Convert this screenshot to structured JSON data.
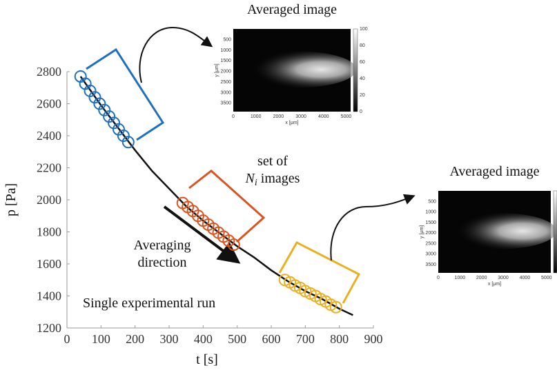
{
  "chart_data": {
    "type": "line",
    "xlabel": "t [s]",
    "ylabel": "p [Pa]",
    "xlim": [
      0,
      900
    ],
    "ylim": [
      1200,
      2800
    ],
    "xticks": [
      0,
      100,
      200,
      300,
      400,
      500,
      600,
      700,
      800,
      900
    ],
    "yticks": [
      1200,
      1400,
      1600,
      1800,
      2000,
      2200,
      2400,
      2600,
      2800
    ],
    "line": {
      "color": "#111111",
      "x": [
        40,
        100,
        150,
        200,
        250,
        300,
        350,
        400,
        450,
        500,
        550,
        600,
        650,
        700,
        750,
        800,
        840
      ],
      "values": [
        2770,
        2590,
        2450,
        2310,
        2180,
        2070,
        1960,
        1870,
        1790,
        1710,
        1640,
        1560,
        1490,
        1430,
        1380,
        1320,
        1280
      ]
    },
    "circle_sets": [
      {
        "color": "#1f6fbf",
        "x": [
          40,
          54,
          68,
          82,
          96,
          110,
          124,
          138,
          152,
          166,
          180
        ],
        "values": [
          2770,
          2725,
          2680,
          2640,
          2600,
          2560,
          2520,
          2480,
          2440,
          2400,
          2360
        ]
      },
      {
        "color": "#d9541e",
        "x": [
          340,
          355,
          370,
          385,
          400,
          415,
          430,
          445,
          460,
          475,
          490
        ],
        "values": [
          1980,
          1955,
          1930,
          1900,
          1870,
          1845,
          1820,
          1795,
          1770,
          1745,
          1720
        ]
      },
      {
        "color": "#eab020",
        "x": [
          640,
          655,
          670,
          685,
          700,
          715,
          730,
          745,
          760,
          775,
          790
        ],
        "values": [
          1500,
          1485,
          1465,
          1450,
          1430,
          1415,
          1400,
          1380,
          1365,
          1345,
          1330
        ]
      }
    ],
    "annotations": {
      "set_of": "set of",
      "n": "N",
      "n_sub": "i",
      "images": " images",
      "direction_1": "Averaging",
      "direction_2": "direction",
      "run": "Single experimental run"
    }
  },
  "insets": [
    {
      "title": "Averaged image",
      "ylabel": "y [μm]",
      "xlabel": "x [μm]",
      "xticks": [
        0,
        1000,
        2000,
        3000,
        4000,
        5000
      ],
      "yticks": [
        500,
        1000,
        1500,
        2000,
        2500,
        3000,
        3500
      ],
      "cbar_ticks": [
        0,
        20,
        40,
        60,
        80,
        100
      ]
    },
    {
      "title": "Averaged image",
      "ylabel": "y [μm]",
      "xlabel": "x [μm]",
      "xticks": [
        0,
        1000,
        2000,
        3000,
        4000,
        5000
      ],
      "yticks": [
        500,
        1000,
        1500,
        2000,
        2500,
        3000,
        3500
      ]
    }
  ]
}
